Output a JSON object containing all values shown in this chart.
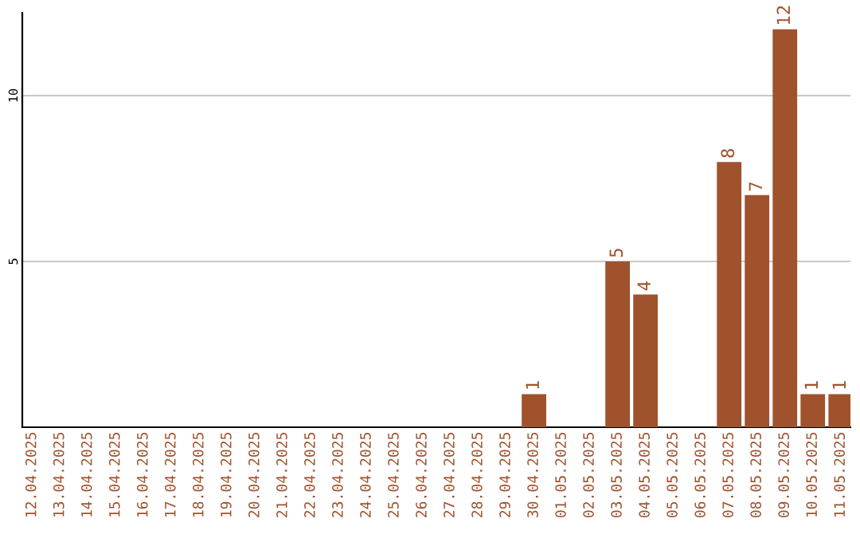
{
  "chart_data": {
    "type": "bar",
    "categories": [
      "12.04.2025",
      "13.04.2025",
      "14.04.2025",
      "15.04.2025",
      "16.04.2025",
      "17.04.2025",
      "18.04.2025",
      "19.04.2025",
      "20.04.2025",
      "21.04.2025",
      "22.04.2025",
      "23.04.2025",
      "24.04.2025",
      "25.04.2025",
      "26.04.2025",
      "27.04.2025",
      "28.04.2025",
      "29.04.2025",
      "30.04.2025",
      "01.05.2025",
      "02.05.2025",
      "03.05.2025",
      "04.05.2025",
      "05.05.2025",
      "06.05.2025",
      "07.05.2025",
      "08.05.2025",
      "09.05.2025",
      "10.05.2025",
      "11.05.2025"
    ],
    "values": [
      0,
      0,
      0,
      0,
      0,
      0,
      0,
      0,
      0,
      0,
      0,
      0,
      0,
      0,
      0,
      0,
      0,
      0,
      1,
      0,
      0,
      5,
      4,
      0,
      0,
      8,
      7,
      12,
      1,
      1
    ],
    "value_labels": [
      null,
      null,
      null,
      null,
      null,
      null,
      null,
      null,
      null,
      null,
      null,
      null,
      null,
      null,
      null,
      null,
      null,
      null,
      "1",
      null,
      null,
      "5",
      "4",
      null,
      null,
      "8",
      "7",
      "12",
      "1",
      "1"
    ],
    "color": "#a0522d",
    "ylim": [
      0,
      12.5
    ],
    "yticks": [
      5,
      10
    ],
    "grid": "y",
    "legend": false
  }
}
